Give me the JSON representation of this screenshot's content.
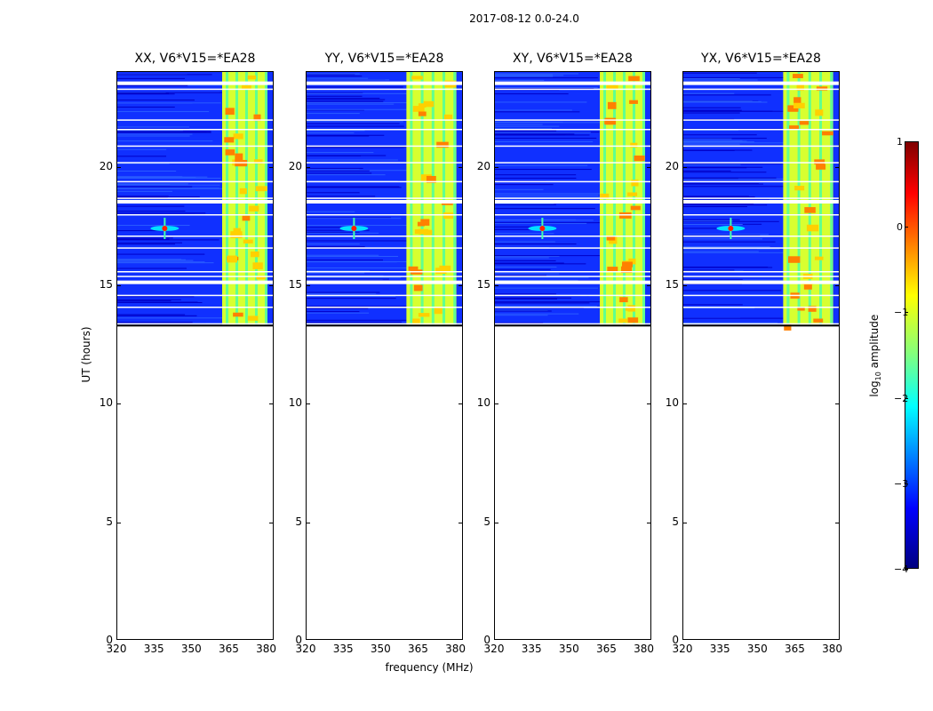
{
  "suptitle": "2017-08-12 0.0-24.0",
  "xlabel": "frequency (MHz)",
  "ylabel": "UT (hours)",
  "colorbar": {
    "label": "log10 amplitude",
    "ticks": [
      "1",
      "0",
      "−1",
      "−2",
      "−3",
      "−4"
    ],
    "range": [
      -4,
      1
    ],
    "colors": [
      "#000080",
      "#0000ff",
      "#0080ff",
      "#00ffff",
      "#80ff80",
      "#ffff00",
      "#ff8000",
      "#ff0000",
      "#800000"
    ]
  },
  "chart_data": [
    {
      "type": "heatmap",
      "title": "XX, V6*V15=*EA28",
      "xlabel": "frequency (MHz)",
      "ylabel": "UT (hours)",
      "xlim": [
        320,
        383
      ],
      "ylim": [
        0,
        24
      ],
      "xticks": [
        "320",
        "335",
        "350",
        "365",
        "380"
      ],
      "yticks": [
        "0",
        "5",
        "10",
        "15",
        "20"
      ],
      "data_extent_hours": [
        13.3,
        24.0
      ],
      "rfi_band_mhz": [
        362,
        380
      ],
      "point_source_mhz": 339,
      "point_source_hour": 17.4
    },
    {
      "type": "heatmap",
      "title": "YY, V6*V15=*EA28",
      "xlabel": "frequency (MHz)",
      "ylabel": "UT (hours)",
      "xlim": [
        320,
        383
      ],
      "ylim": [
        0,
        24
      ],
      "xticks": [
        "320",
        "335",
        "350",
        "365",
        "380"
      ],
      "yticks": [
        "0",
        "5",
        "10",
        "15",
        "20"
      ],
      "data_extent_hours": [
        13.3,
        24.0
      ],
      "rfi_band_mhz": [
        360,
        380
      ],
      "point_source_mhz": 339,
      "point_source_hour": 17.4
    },
    {
      "type": "heatmap",
      "title": "XY, V6*V15=*EA28",
      "xlabel": "frequency (MHz)",
      "ylabel": "UT (hours)",
      "xlim": [
        320,
        383
      ],
      "ylim": [
        0,
        24
      ],
      "xticks": [
        "320",
        "335",
        "350",
        "365",
        "380"
      ],
      "yticks": [
        "0",
        "5",
        "10",
        "15",
        "20"
      ],
      "data_extent_hours": [
        13.3,
        24.0
      ],
      "rfi_band_mhz": [
        362,
        380
      ],
      "point_source_mhz": 339,
      "point_source_hour": 17.4
    },
    {
      "type": "heatmap",
      "title": "YX, V6*V15=*EA28",
      "xlabel": "frequency (MHz)",
      "ylabel": "UT (hours)",
      "xlim": [
        320,
        383
      ],
      "ylim": [
        0,
        24
      ],
      "xticks": [
        "320",
        "335",
        "350",
        "365",
        "380"
      ],
      "yticks": [
        "0",
        "5",
        "10",
        "15",
        "20"
      ],
      "data_extent_hours": [
        13.3,
        24.0
      ],
      "rfi_band_mhz": [
        360,
        380
      ],
      "point_source_mhz": 339,
      "point_source_hour": 17.4
    }
  ]
}
